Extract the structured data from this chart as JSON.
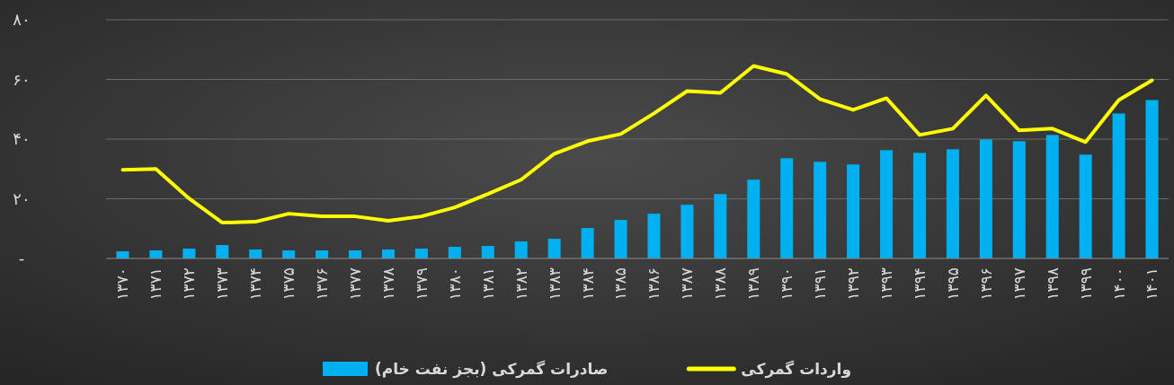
{
  "chart_data": {
    "type": "bar",
    "categories": [
      "۱۳۷۰",
      "۱۳۷۱",
      "۱۳۷۲",
      "۱۳۷۳",
      "۱۳۷۴",
      "۱۳۷۵",
      "۱۳۷۶",
      "۱۳۷۷",
      "۱۳۷۸",
      "۱۳۷۹",
      "۱۳۸۰",
      "۱۳۸۱",
      "۱۳۸۲",
      "۱۳۸۳",
      "۱۳۸۴",
      "۱۳۸۵",
      "۱۳۸۶",
      "۱۳۸۷",
      "۱۳۸۸",
      "۱۳۸۹",
      "۱۳۹۰",
      "۱۳۹۱",
      "۱۳۹۲",
      "۱۳۹۳",
      "۱۳۹۴",
      "۱۳۹۵",
      "۱۳۹۶",
      "۱۳۹۷",
      "۱۳۹۸",
      "۱۳۹۹",
      "۱۴۰۰",
      "۱۴۰۱"
    ],
    "series": [
      {
        "name": "صادرات گمرکی (بجز نفت خام)",
        "color": "#00b0f0",
        "values": [
          2.4,
          2.7,
          3.3,
          4.5,
          3.0,
          2.7,
          2.7,
          2.7,
          3.0,
          3.3,
          3.9,
          4.2,
          5.7,
          6.6,
          10.2,
          12.9,
          15.0,
          18.0,
          21.6,
          26.4,
          33.6,
          32.4,
          31.5,
          36.3,
          35.4,
          36.6,
          39.9,
          39.3,
          41.4,
          34.8,
          48.6,
          53.1
        ]
      },
      {
        "name": "واردات گمرکی",
        "type": "line",
        "color": "#ffff00",
        "values": [
          29.7,
          30.0,
          20.1,
          12.0,
          12.3,
          15.0,
          14.1,
          14.1,
          12.6,
          14.1,
          17.1,
          21.6,
          26.4,
          35.1,
          39.3,
          41.7,
          48.6,
          56.1,
          55.5,
          64.5,
          61.8,
          53.4,
          49.8,
          53.7,
          41.4,
          43.5,
          54.6,
          42.9,
          43.5,
          39.0,
          53.1,
          59.7
        ]
      }
    ],
    "ylim": [
      0,
      80
    ],
    "yticks": [
      {
        "value": 0,
        "label": "-"
      },
      {
        "value": 20,
        "label": "۲۰"
      },
      {
        "value": 40,
        "label": "۴۰"
      },
      {
        "value": 60,
        "label": "۶۰"
      },
      {
        "value": 80,
        "label": "۸۰"
      }
    ],
    "grid": "y",
    "legend": "bottom",
    "marker": "none",
    "line_style": "solid"
  }
}
